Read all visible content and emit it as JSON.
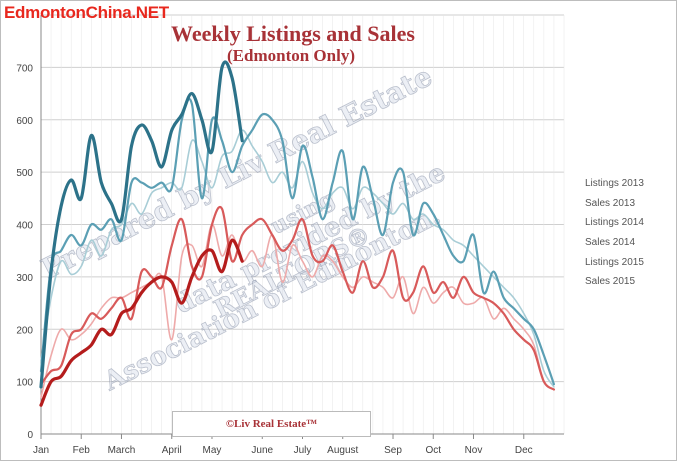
{
  "watermark_site": "EdmontonChina.NET",
  "chart_data": {
    "type": "line",
    "title": "Weekly Listings and Sales",
    "subtitle": "(Edmonton Only)",
    "footer_label": "©Liv Real Estate™",
    "watermark_lines": [
      "Prepared by Liv Real Estate",
      "using",
      "data provided by the",
      "REALTORS®",
      "Association of Edmonton."
    ],
    "xlabel": "",
    "ylabel": "",
    "ylim": [
      0,
      800
    ],
    "y_ticks": [
      0,
      100,
      200,
      300,
      400,
      500,
      600,
      700
    ],
    "x_range": [
      0,
      52
    ],
    "x_ticks": [
      {
        "label": "Jan",
        "week": 0
      },
      {
        "label": "Feb",
        "week": 4
      },
      {
        "label": "March",
        "week": 8
      },
      {
        "label": "April",
        "week": 13
      },
      {
        "label": "May",
        "week": 17
      },
      {
        "label": "June",
        "week": 22
      },
      {
        "label": "July",
        "week": 26
      },
      {
        "label": "August",
        "week": 30
      },
      {
        "label": "Sep",
        "week": 35
      },
      {
        "label": "Oct",
        "week": 39
      },
      {
        "label": "Nov",
        "week": 43
      },
      {
        "label": "Dec",
        "week": 48
      }
    ],
    "grid": true,
    "legend_position": "right",
    "series": [
      {
        "name": "Listings 2013",
        "color": "#a8cdd6",
        "x": [
          0,
          1,
          2,
          3,
          4,
          5,
          6,
          7,
          8,
          9,
          10,
          11,
          12,
          13,
          14,
          15,
          16,
          17,
          18,
          19,
          20,
          21,
          22,
          23,
          24,
          25,
          26,
          27,
          28,
          29,
          30,
          31,
          32,
          33,
          34,
          35,
          36,
          37,
          38,
          39,
          40,
          41,
          42,
          43,
          44,
          45,
          46,
          47,
          48,
          49,
          50,
          51
        ],
        "values": [
          140,
          260,
          330,
          305,
          320,
          370,
          340,
          390,
          400,
          440,
          420,
          460,
          470,
          480,
          470,
          560,
          520,
          470,
          530,
          540,
          580,
          550,
          520,
          480,
          500,
          470,
          520,
          460,
          430,
          460,
          470,
          430,
          470,
          460,
          440,
          420,
          440,
          410,
          420,
          400,
          390,
          370,
          360,
          340,
          320,
          300,
          280,
          260,
          230,
          190,
          120,
          90
        ]
      },
      {
        "name": "Sales 2013",
        "color": "#eeaaaa",
        "x": [
          0,
          1,
          2,
          3,
          4,
          5,
          6,
          7,
          8,
          9,
          10,
          11,
          12,
          13,
          14,
          15,
          16,
          17,
          18,
          19,
          20,
          21,
          22,
          23,
          24,
          25,
          26,
          27,
          28,
          29,
          30,
          31,
          32,
          33,
          34,
          35,
          36,
          37,
          38,
          39,
          40,
          41,
          42,
          43,
          44,
          45,
          46,
          47,
          48,
          49,
          50,
          51
        ],
        "values": [
          70,
          150,
          200,
          180,
          190,
          210,
          240,
          260,
          260,
          270,
          280,
          290,
          300,
          180,
          340,
          360,
          320,
          400,
          340,
          380,
          330,
          350,
          320,
          380,
          290,
          360,
          330,
          300,
          340,
          330,
          300,
          280,
          300,
          290,
          280,
          260,
          300,
          230,
          280,
          250,
          270,
          280,
          250,
          250,
          260,
          220,
          240,
          220,
          200,
          170,
          100,
          85
        ]
      },
      {
        "name": "Listings 2014",
        "color": "#5b9fb4",
        "x": [
          0,
          1,
          2,
          3,
          4,
          5,
          6,
          7,
          8,
          9,
          10,
          11,
          12,
          13,
          14,
          15,
          16,
          17,
          18,
          19,
          20,
          21,
          22,
          23,
          24,
          25,
          26,
          27,
          28,
          29,
          30,
          31,
          32,
          33,
          34,
          35,
          36,
          37,
          38,
          39,
          40,
          41,
          42,
          43,
          44,
          45,
          46,
          47,
          48,
          49,
          50,
          51
        ],
        "values": [
          120,
          320,
          350,
          380,
          360,
          400,
          390,
          410,
          370,
          480,
          480,
          470,
          480,
          470,
          600,
          630,
          450,
          600,
          560,
          500,
          550,
          580,
          610,
          600,
          560,
          450,
          550,
          490,
          410,
          480,
          540,
          410,
          510,
          450,
          380,
          480,
          500,
          380,
          440,
          420,
          380,
          340,
          330,
          380,
          270,
          310,
          260,
          240,
          220,
          200,
          150,
          95
        ]
      },
      {
        "name": "Sales 2014",
        "color": "#d85a5a",
        "x": [
          0,
          1,
          2,
          3,
          4,
          5,
          6,
          7,
          8,
          9,
          10,
          11,
          12,
          13,
          14,
          15,
          16,
          17,
          18,
          19,
          20,
          21,
          22,
          23,
          24,
          25,
          26,
          27,
          28,
          29,
          30,
          31,
          32,
          33,
          34,
          35,
          36,
          37,
          38,
          39,
          40,
          41,
          42,
          43,
          44,
          45,
          46,
          47,
          48,
          49,
          50,
          51
        ],
        "values": [
          95,
          120,
          130,
          190,
          200,
          230,
          220,
          240,
          260,
          220,
          310,
          300,
          280,
          360,
          410,
          320,
          300,
          400,
          430,
          330,
          380,
          400,
          410,
          380,
          350,
          370,
          410,
          340,
          330,
          360,
          310,
          270,
          330,
          280,
          300,
          350,
          260,
          270,
          320,
          270,
          290,
          260,
          300,
          270,
          260,
          250,
          230,
          200,
          180,
          160,
          100,
          85
        ]
      },
      {
        "name": "Listings 2015",
        "color": "#2c7289",
        "x": [
          0,
          1,
          2,
          3,
          4,
          5,
          6,
          7,
          8,
          9,
          10,
          11,
          12,
          13,
          14,
          15,
          16,
          17,
          18,
          19,
          20
        ],
        "values": [
          90,
          310,
          435,
          485,
          450,
          570,
          480,
          440,
          410,
          550,
          590,
          560,
          510,
          580,
          610,
          650,
          600,
          540,
          700,
          680,
          560
        ]
      },
      {
        "name": "Sales 2015",
        "color": "#b41c1c",
        "x": [
          0,
          1,
          2,
          3,
          4,
          5,
          6,
          7,
          8,
          9,
          10,
          11,
          12,
          13,
          14,
          15,
          16,
          17,
          18,
          19,
          20
        ],
        "values": [
          55,
          100,
          110,
          140,
          155,
          170,
          200,
          190,
          230,
          240,
          270,
          290,
          300,
          290,
          250,
          300,
          340,
          350,
          310,
          370,
          330
        ]
      }
    ]
  }
}
